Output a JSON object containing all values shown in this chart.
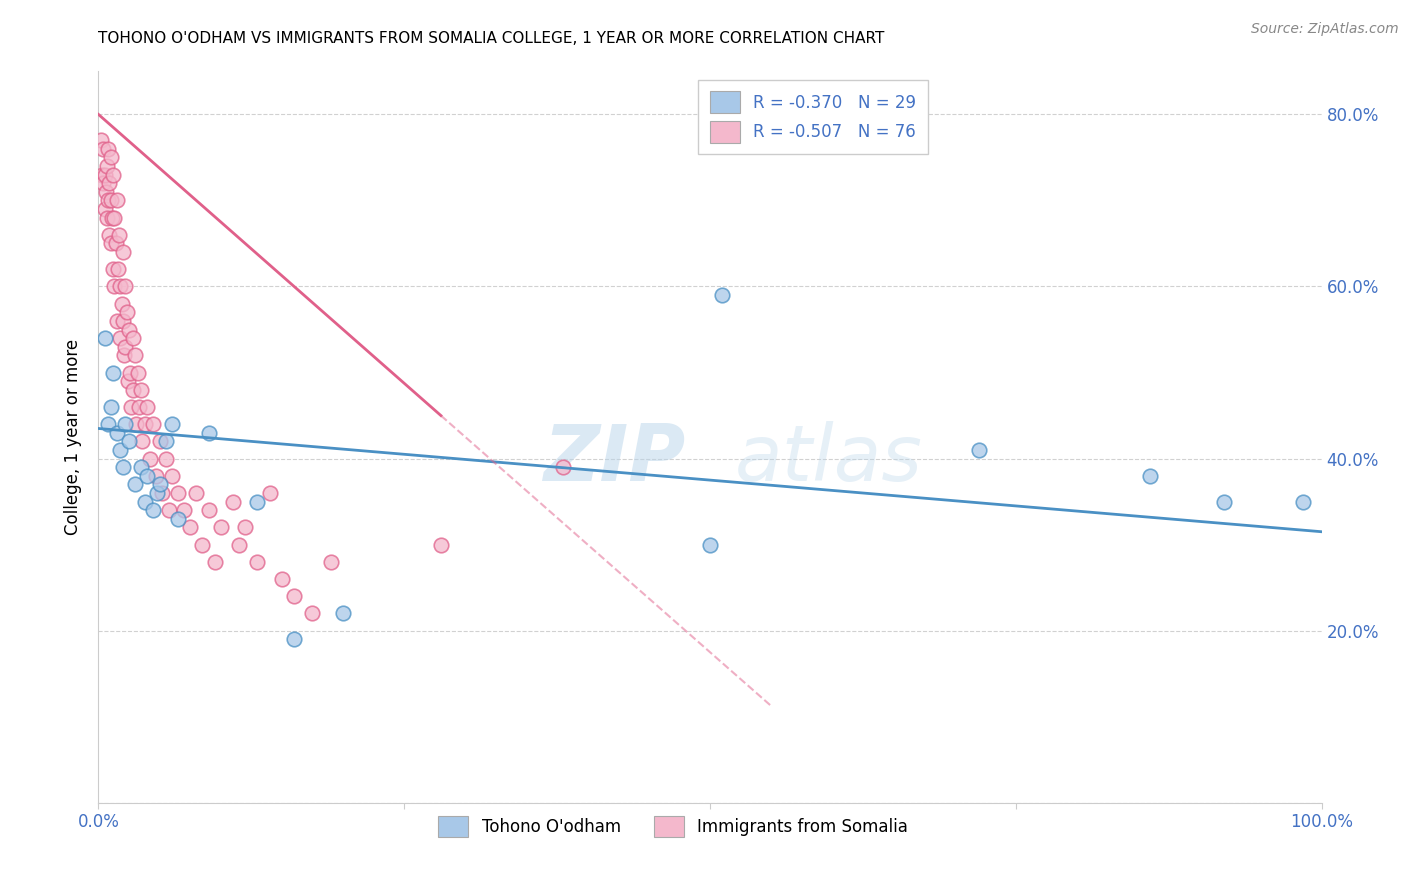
{
  "title": "TOHONO O'ODHAM VS IMMIGRANTS FROM SOMALIA COLLEGE, 1 YEAR OR MORE CORRELATION CHART",
  "source": "Source: ZipAtlas.com",
  "ylabel": "College, 1 year or more",
  "xlim": [
    0,
    1.0
  ],
  "ylim": [
    0,
    0.85
  ],
  "xticks": [
    0,
    0.25,
    0.5,
    0.75,
    1.0
  ],
  "xtick_labels": [
    "0.0%",
    "",
    "",
    "",
    "100.0%"
  ],
  "yticks": [
    0.0,
    0.2,
    0.4,
    0.6,
    0.8
  ],
  "ytick_labels": [
    "",
    "20.0%",
    "40.0%",
    "60.0%",
    "80.0%"
  ],
  "legend_r1": "R = -0.370",
  "legend_n1": "N = 29",
  "legend_r2": "R = -0.507",
  "legend_n2": "N = 76",
  "legend_label1": "Tohono O'odham",
  "legend_label2": "Immigrants from Somalia",
  "color_blue": "#a8c8e8",
  "color_pink": "#f4b8cc",
  "color_blue_line": "#4a90c4",
  "color_pink_line": "#e0608a",
  "watermark_zip": "ZIP",
  "watermark_atlas": "atlas",
  "blue_line_x0": 0.0,
  "blue_line_y0": 0.435,
  "blue_line_x1": 1.0,
  "blue_line_y1": 0.315,
  "pink_line_x0": 0.0,
  "pink_line_y0": 0.8,
  "pink_line_x1": 0.4,
  "pink_line_y1": 0.3,
  "blue_x": [
    0.005,
    0.008,
    0.01,
    0.012,
    0.015,
    0.018,
    0.02,
    0.022,
    0.025,
    0.03,
    0.035,
    0.038,
    0.04,
    0.045,
    0.048,
    0.05,
    0.055,
    0.06,
    0.065,
    0.09,
    0.13,
    0.16,
    0.2,
    0.5,
    0.51,
    0.72,
    0.86,
    0.92,
    0.985
  ],
  "blue_y": [
    0.54,
    0.44,
    0.46,
    0.5,
    0.43,
    0.41,
    0.39,
    0.44,
    0.42,
    0.37,
    0.39,
    0.35,
    0.38,
    0.34,
    0.36,
    0.37,
    0.42,
    0.44,
    0.33,
    0.43,
    0.35,
    0.19,
    0.22,
    0.3,
    0.59,
    0.41,
    0.38,
    0.35,
    0.35
  ],
  "pink_x": [
    0.002,
    0.003,
    0.004,
    0.004,
    0.005,
    0.005,
    0.006,
    0.007,
    0.007,
    0.008,
    0.008,
    0.009,
    0.009,
    0.01,
    0.01,
    0.01,
    0.011,
    0.012,
    0.012,
    0.013,
    0.013,
    0.014,
    0.015,
    0.015,
    0.016,
    0.017,
    0.018,
    0.018,
    0.019,
    0.02,
    0.02,
    0.021,
    0.022,
    0.022,
    0.023,
    0.024,
    0.025,
    0.026,
    0.027,
    0.028,
    0.028,
    0.03,
    0.031,
    0.032,
    0.033,
    0.035,
    0.036,
    0.038,
    0.04,
    0.042,
    0.045,
    0.047,
    0.05,
    0.052,
    0.055,
    0.058,
    0.06,
    0.065,
    0.07,
    0.075,
    0.08,
    0.085,
    0.09,
    0.095,
    0.1,
    0.11,
    0.115,
    0.12,
    0.13,
    0.14,
    0.15,
    0.16,
    0.175,
    0.19,
    0.28,
    0.38
  ],
  "pink_y": [
    0.77,
    0.73,
    0.76,
    0.72,
    0.73,
    0.69,
    0.71,
    0.74,
    0.68,
    0.76,
    0.7,
    0.72,
    0.66,
    0.75,
    0.7,
    0.65,
    0.68,
    0.73,
    0.62,
    0.68,
    0.6,
    0.65,
    0.7,
    0.56,
    0.62,
    0.66,
    0.6,
    0.54,
    0.58,
    0.64,
    0.56,
    0.52,
    0.6,
    0.53,
    0.57,
    0.49,
    0.55,
    0.5,
    0.46,
    0.54,
    0.48,
    0.52,
    0.44,
    0.5,
    0.46,
    0.48,
    0.42,
    0.44,
    0.46,
    0.4,
    0.44,
    0.38,
    0.42,
    0.36,
    0.4,
    0.34,
    0.38,
    0.36,
    0.34,
    0.32,
    0.36,
    0.3,
    0.34,
    0.28,
    0.32,
    0.35,
    0.3,
    0.32,
    0.28,
    0.36,
    0.26,
    0.24,
    0.22,
    0.28,
    0.3,
    0.39
  ]
}
